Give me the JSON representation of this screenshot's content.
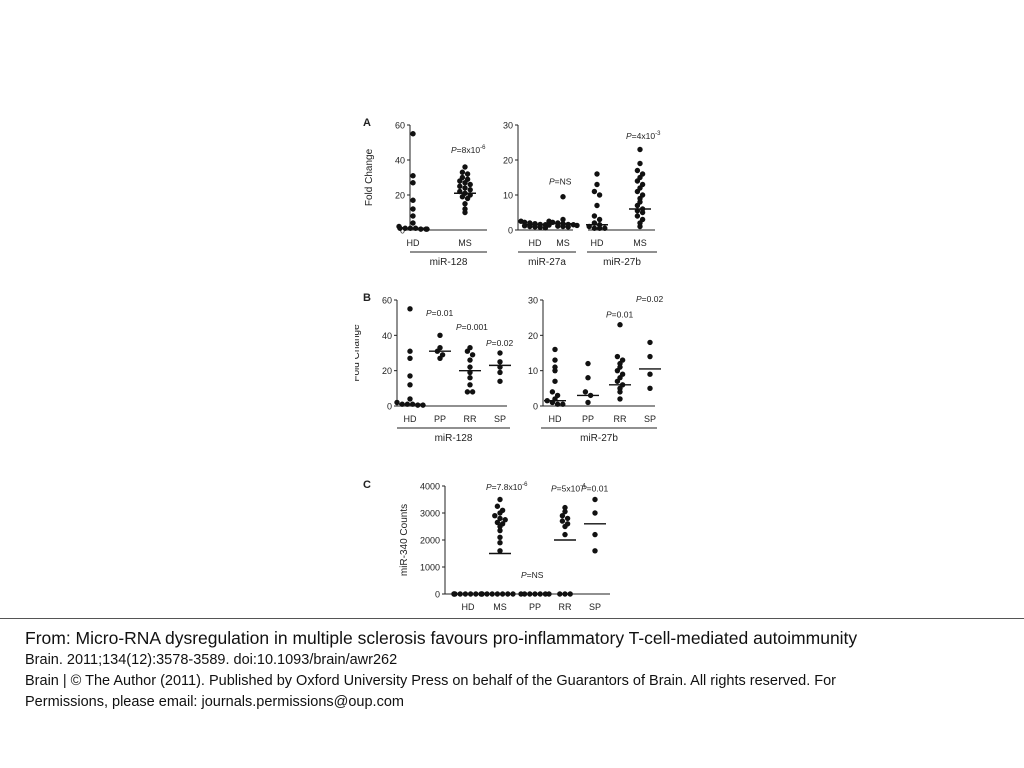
{
  "panels": [
    {
      "label": "A",
      "groups": [
        {
          "label": "miR-128",
          "categories": [
            "HD",
            "MS"
          ],
          "ylim": [
            0,
            60
          ],
          "yticks": [
            0,
            20,
            40,
            60
          ],
          "ylabel": "Fold Change",
          "pvalues": [
            {
              "category": "MS",
              "base": "P=8x10",
              "sup": "-6",
              "value": 44
            }
          ],
          "series": [
            {
              "category": "HD",
              "points": [
                55,
                31,
                27,
                17,
                12,
                8,
                4,
                2,
                1,
                1,
                1,
                1,
                0.5,
                0.5,
                0.5
              ],
              "median": 1
            },
            {
              "category": "MS",
              "points": [
                36,
                33,
                32,
                30,
                29,
                28,
                27,
                26,
                25,
                24,
                23,
                22,
                21,
                20,
                19,
                18,
                15,
                12,
                10
              ],
              "median": 21
            }
          ]
        },
        {
          "label": "miR-27a",
          "categories": [
            "HD",
            "MS"
          ],
          "ylim": [
            0,
            30
          ],
          "yticks": [
            0,
            10,
            20,
            30
          ],
          "ylabel": "",
          "pvalues": [
            {
              "category": "MS",
              "base": "P=NS",
              "sup": "",
              "value": 13
            }
          ],
          "series": [
            {
              "category": "HD",
              "points": [
                2.5,
                2.2,
                2,
                1.8,
                1.6,
                1.5,
                1.4,
                1.2,
                1,
                0.9,
                0.8,
                0.6
              ],
              "median": 1.5
            },
            {
              "category": "MS",
              "points": [
                9.5,
                3,
                2.5,
                2.2,
                2,
                1.8,
                1.6,
                1.5,
                1.3,
                1.1,
                1,
                0.9
              ],
              "median": 1.8
            }
          ]
        },
        {
          "label": "miR-27b",
          "categories": [
            "HD",
            "MS"
          ],
          "ylim": [
            0,
            30
          ],
          "yticks": [],
          "ylabel": "",
          "pvalues": [
            {
              "category": "MS",
              "base": "P=4x10",
              "sup": "-3",
              "value": 26
            }
          ],
          "series": [
            {
              "category": "HD",
              "points": [
                16,
                13,
                11,
                10,
                7,
                4,
                3,
                2,
                1.5,
                1,
                0.5,
                0.5,
                0.5
              ],
              "median": 1.5
            },
            {
              "category": "MS",
              "points": [
                23,
                19,
                17,
                16,
                15,
                14,
                13,
                12,
                11,
                10,
                9,
                8,
                7,
                6,
                5.5,
                5,
                4,
                3,
                2,
                1
              ],
              "median": 6
            }
          ]
        }
      ]
    },
    {
      "label": "B",
      "groups": [
        {
          "label": "miR-128",
          "categories": [
            "HD",
            "PP",
            "RR",
            "SP"
          ],
          "ylim": [
            0,
            60
          ],
          "yticks": [
            0,
            20,
            40,
            60
          ],
          "ylabel": "Fold Change",
          "pvalues": [
            {
              "category": "PP",
              "base": "P=0.01",
              "sup": "",
              "value": 51
            },
            {
              "category": "RR",
              "base": "P=0.001",
              "sup": "",
              "value": 43
            },
            {
              "category": "SP",
              "base": "P=0.02",
              "sup": "",
              "value": 34
            }
          ],
          "series": [
            {
              "category": "HD",
              "points": [
                55,
                31,
                27,
                17,
                12,
                4,
                2,
                1,
                1,
                1,
                0.5,
                0.5
              ],
              "median": 1
            },
            {
              "category": "PP",
              "points": [
                40,
                33,
                31,
                29,
                27
              ],
              "median": 31
            },
            {
              "category": "RR",
              "points": [
                33,
                31,
                29,
                26,
                22,
                19,
                16,
                12,
                8,
                8
              ],
              "median": 20
            },
            {
              "category": "SP",
              "points": [
                30,
                25,
                22,
                19,
                14
              ],
              "median": 23
            }
          ]
        },
        {
          "label": "miR-27b",
          "categories": [
            "HD",
            "PP",
            "RR",
            "SP"
          ],
          "ylim": [
            0,
            30
          ],
          "yticks": [
            0,
            10,
            20,
            30
          ],
          "ylabel": "",
          "pvalues": [
            {
              "category": "RR",
              "base": "P=0.01",
              "sup": "",
              "value": 25
            },
            {
              "category": "SP",
              "base": "P=0.02",
              "sup": "",
              "value": 29.5
            }
          ],
          "series": [
            {
              "category": "HD",
              "points": [
                16,
                13,
                11,
                10,
                7,
                4,
                3,
                2,
                1.5,
                1,
                0.5,
                0.5
              ],
              "median": 1.5
            },
            {
              "category": "PP",
              "points": [
                12,
                8,
                4,
                3,
                1
              ],
              "median": 3
            },
            {
              "category": "RR",
              "points": [
                23,
                14,
                13,
                12,
                11,
                10,
                9,
                8,
                7,
                6,
                5,
                4,
                2
              ],
              "median": 6
            },
            {
              "category": "SP",
              "points": [
                18,
                14,
                9,
                5
              ],
              "median": 10.5
            }
          ]
        }
      ]
    },
    {
      "label": "C",
      "groups": [
        {
          "label": "",
          "categories": [
            "HD",
            "MS",
            "PP",
            "RR",
            "SP"
          ],
          "ylim": [
            0,
            4000
          ],
          "yticks": [
            0,
            1000,
            2000,
            3000,
            4000
          ],
          "ylabel": "miR-340 Counts",
          "pvalues": [
            {
              "category": "MS",
              "base": "P=7.8x10",
              "sup": "-6",
              "value": 3850
            },
            {
              "category": "PP",
              "base": "P=NS",
              "sup": "",
              "value": 600
            },
            {
              "category": "RR",
              "base": "P=5x10",
              "sup": "-4",
              "value": 3800
            },
            {
              "category": "SP",
              "base": "P=0.01",
              "sup": "",
              "value": 3800
            }
          ],
          "series": [
            {
              "category": "HD",
              "points": [
                0,
                0,
                0,
                0,
                0,
                0,
                0,
                0,
                0,
                0
              ],
              "median": null
            },
            {
              "category": "MS",
              "points": [
                3500,
                3250,
                3100,
                3000,
                2900,
                2800,
                2750,
                2650,
                2600,
                2500,
                2350,
                2100,
                1900,
                1600,
                0,
                0,
                0,
                0,
                0,
                0
              ],
              "median": 1500
            },
            {
              "category": "PP",
              "points": [
                0,
                0,
                0,
                0,
                0,
                0,
                0
              ],
              "median": null
            },
            {
              "category": "RR",
              "points": [
                3200,
                3050,
                2900,
                2800,
                2700,
                2600,
                2500,
                2200,
                0,
                0,
                0
              ],
              "median": 2000
            },
            {
              "category": "SP",
              "points": [
                3500,
                3000,
                2200,
                1600
              ],
              "median": 2600
            }
          ]
        }
      ]
    }
  ],
  "caption": {
    "title": "From: Micro-RNA dysregulation in multiple sclerosis favours pro-inflammatory T-cell-mediated autoimmunity",
    "citation": "Brain. 2011;134(12):3578-3589. doi:10.1093/brain/awr262",
    "copyright_line1": "Brain | © The Author (2011). Published by Oxford University Press on behalf of the Guarantors of Brain. All rights reserved. For",
    "copyright_line2": "Permissions, please email: journals.permissions@oup.com"
  },
  "chart_data": [
    {
      "type": "scatter",
      "panel": "A",
      "title": "",
      "ylabel": "Fold Change",
      "series": [
        {
          "name": "miR-128",
          "categories": [
            "HD",
            "MS"
          ],
          "ylim": [
            0,
            60
          ],
          "pvalue": "P=8x10-6"
        },
        {
          "name": "miR-27a",
          "categories": [
            "HD",
            "MS"
          ],
          "ylim": [
            0,
            30
          ],
          "pvalue": "P=NS"
        },
        {
          "name": "miR-27b",
          "categories": [
            "HD",
            "MS"
          ],
          "ylim": [
            0,
            30
          ],
          "pvalue": "P=4x10-3"
        }
      ]
    },
    {
      "type": "scatter",
      "panel": "B",
      "title": "",
      "ylabel": "Fold Change",
      "series": [
        {
          "name": "miR-128",
          "categories": [
            "HD",
            "PP",
            "RR",
            "SP"
          ],
          "ylim": [
            0,
            60
          ]
        },
        {
          "name": "miR-27b",
          "categories": [
            "HD",
            "PP",
            "RR",
            "SP"
          ],
          "ylim": [
            0,
            30
          ]
        }
      ]
    },
    {
      "type": "scatter",
      "panel": "C",
      "title": "",
      "ylabel": "miR-340 Counts",
      "categories": [
        "HD",
        "MS",
        "PP",
        "RR",
        "SP"
      ],
      "ylim": [
        0,
        4000
      ]
    }
  ]
}
